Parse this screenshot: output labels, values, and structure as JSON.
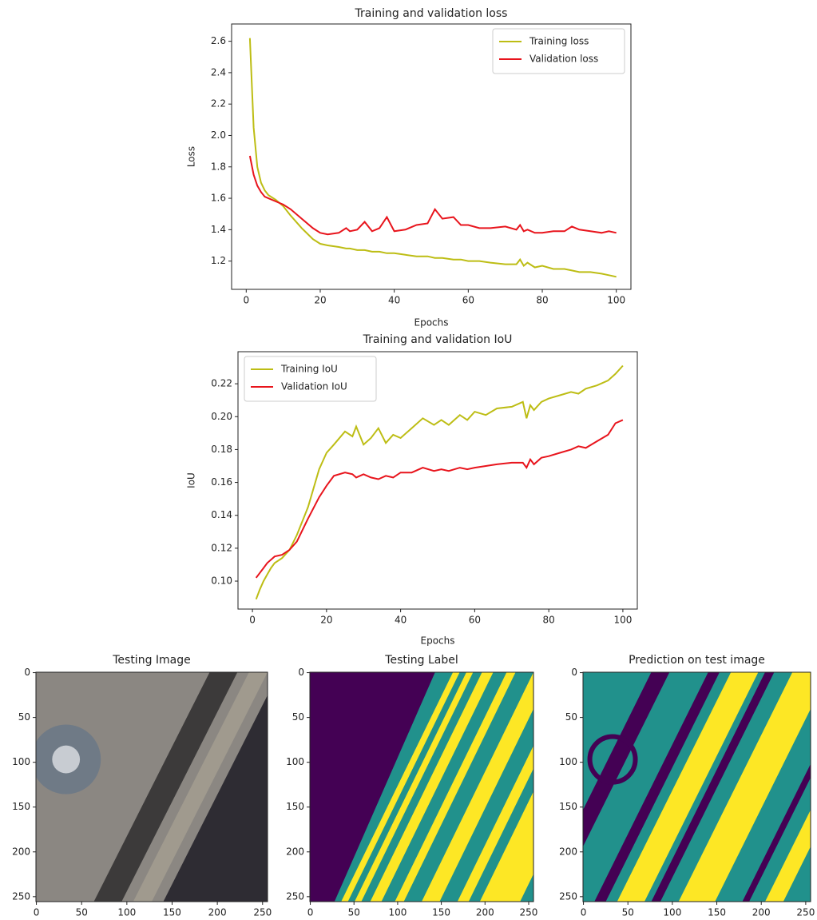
{
  "chart_data": [
    {
      "type": "line",
      "title": "Training and validation loss",
      "xlabel": "Epochs",
      "ylabel": "Loss",
      "legend": "upper right",
      "x": [
        1,
        2,
        3,
        4,
        5,
        6,
        8,
        10,
        12,
        15,
        18,
        20,
        22,
        25,
        27,
        28,
        30,
        32,
        34,
        36,
        38,
        40,
        43,
        46,
        49,
        51,
        53,
        56,
        58,
        60,
        63,
        66,
        70,
        73,
        74,
        75,
        76,
        78,
        80,
        83,
        86,
        88,
        90,
        93,
        96,
        98,
        100
      ],
      "series": [
        {
          "name": "Training loss",
          "color": "#bdbd14",
          "values": [
            2.62,
            2.05,
            1.8,
            1.7,
            1.65,
            1.62,
            1.59,
            1.55,
            1.49,
            1.41,
            1.34,
            1.31,
            1.3,
            1.29,
            1.28,
            1.28,
            1.27,
            1.27,
            1.26,
            1.26,
            1.25,
            1.25,
            1.24,
            1.23,
            1.23,
            1.22,
            1.22,
            1.21,
            1.21,
            1.2,
            1.2,
            1.19,
            1.18,
            1.18,
            1.21,
            1.17,
            1.19,
            1.16,
            1.17,
            1.15,
            1.15,
            1.14,
            1.13,
            1.13,
            1.12,
            1.11,
            1.1
          ]
        },
        {
          "name": "Validation loss",
          "color": "#e8141c",
          "values": [
            1.87,
            1.75,
            1.68,
            1.64,
            1.61,
            1.6,
            1.58,
            1.56,
            1.53,
            1.47,
            1.41,
            1.38,
            1.37,
            1.38,
            1.41,
            1.39,
            1.4,
            1.45,
            1.39,
            1.41,
            1.48,
            1.39,
            1.4,
            1.43,
            1.44,
            1.53,
            1.47,
            1.48,
            1.43,
            1.43,
            1.41,
            1.41,
            1.42,
            1.4,
            1.43,
            1.39,
            1.4,
            1.38,
            1.38,
            1.39,
            1.39,
            1.42,
            1.4,
            1.39,
            1.38,
            1.39,
            1.38
          ]
        }
      ],
      "xlim": [
        -3.95,
        103.95
      ],
      "xticks": [
        0,
        20,
        40,
        60,
        80,
        100
      ],
      "ylim": [
        1.02,
        2.71
      ],
      "yticks": [
        1.2,
        1.4,
        1.6,
        1.8,
        {
          "value": 2.0,
          "label": "2.0"
        },
        2.2,
        2.4,
        2.6
      ]
    },
    {
      "type": "line",
      "title": "Training and validation IoU",
      "xlabel": "Epochs",
      "ylabel": "IoU",
      "legend": "upper left",
      "x": [
        1,
        2,
        3,
        4,
        5,
        6,
        8,
        10,
        12,
        15,
        18,
        20,
        22,
        25,
        27,
        28,
        30,
        32,
        34,
        36,
        38,
        40,
        43,
        46,
        49,
        51,
        53,
        56,
        58,
        60,
        63,
        66,
        70,
        73,
        74,
        75,
        76,
        78,
        80,
        83,
        86,
        88,
        90,
        93,
        96,
        98,
        100
      ],
      "series": [
        {
          "name": "Training IoU",
          "color": "#bdbd14",
          "values": [
            0.089,
            0.095,
            0.1,
            0.104,
            0.108,
            0.111,
            0.114,
            0.119,
            0.128,
            0.145,
            0.168,
            0.178,
            0.183,
            0.191,
            0.188,
            0.194,
            0.183,
            0.187,
            0.193,
            0.184,
            0.189,
            0.187,
            0.193,
            0.199,
            0.195,
            0.198,
            0.195,
            0.201,
            0.198,
            0.203,
            0.201,
            0.205,
            0.206,
            0.209,
            0.199,
            0.207,
            0.204,
            0.209,
            0.211,
            0.213,
            0.215,
            0.214,
            0.217,
            0.219,
            0.222,
            0.226,
            0.231
          ]
        },
        {
          "name": "Validation IoU",
          "color": "#e8141c",
          "values": [
            0.102,
            0.105,
            0.108,
            0.111,
            0.113,
            0.115,
            0.116,
            0.119,
            0.124,
            0.138,
            0.151,
            0.158,
            0.164,
            0.166,
            0.165,
            0.163,
            0.165,
            0.163,
            0.162,
            0.164,
            0.163,
            0.166,
            0.166,
            0.169,
            0.167,
            0.168,
            0.167,
            0.169,
            0.168,
            0.169,
            0.17,
            0.171,
            0.172,
            0.172,
            0.169,
            0.174,
            0.171,
            0.175,
            0.176,
            0.178,
            0.18,
            0.182,
            0.181,
            0.185,
            0.189,
            0.196,
            0.198
          ]
        }
      ],
      "xlim": [
        -3.9,
        103.9
      ],
      "xticks": [
        0,
        20,
        40,
        60,
        80,
        100
      ],
      "ylim": [
        0.083,
        0.2395
      ],
      "yticks": [
        {
          "value": 0.1,
          "label": "0.10"
        },
        0.12,
        0.14,
        0.16,
        0.18,
        {
          "value": 0.2,
          "label": "0.20"
        },
        0.22
      ]
    },
    {
      "type": "image",
      "title": "Testing Image",
      "xlim": [
        -0.5,
        255.5
      ],
      "ylim": [
        255.5,
        -0.5
      ],
      "xticks": [
        0,
        50,
        100,
        150,
        200,
        250
      ],
      "yticks": [
        0,
        50,
        100,
        150,
        200,
        250
      ]
    },
    {
      "type": "image",
      "title": "Testing Label",
      "xlim": [
        -0.5,
        255.5
      ],
      "ylim": [
        255.5,
        -0.5
      ],
      "xticks": [
        0,
        50,
        100,
        150,
        200,
        250
      ],
      "yticks": [
        0,
        50,
        100,
        150,
        200,
        250
      ]
    },
    {
      "type": "image",
      "title": "Prediction on test image",
      "xlim": [
        -0.5,
        255.5
      ],
      "ylim": [
        255.5,
        -0.5
      ],
      "xticks": [
        0,
        50,
        100,
        150,
        200,
        250
      ],
      "yticks": [
        0,
        50,
        100,
        150,
        200,
        250
      ]
    }
  ]
}
